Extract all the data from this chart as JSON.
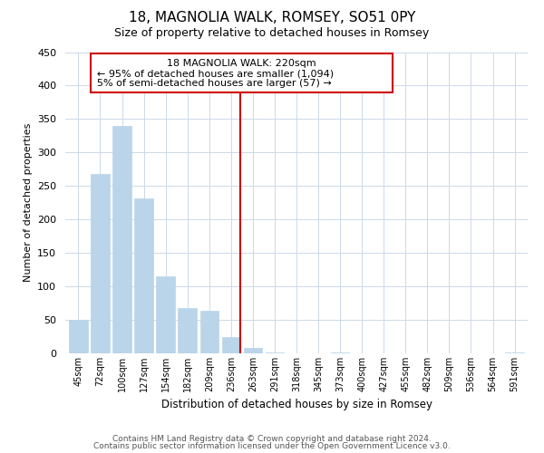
{
  "title": "18, MAGNOLIA WALK, ROMSEY, SO51 0PY",
  "subtitle": "Size of property relative to detached houses in Romsey",
  "xlabel": "Distribution of detached houses by size in Romsey",
  "ylabel": "Number of detached properties",
  "bar_labels": [
    "45sqm",
    "72sqm",
    "100sqm",
    "127sqm",
    "154sqm",
    "182sqm",
    "209sqm",
    "236sqm",
    "263sqm",
    "291sqm",
    "318sqm",
    "345sqm",
    "373sqm",
    "400sqm",
    "427sqm",
    "455sqm",
    "482sqm",
    "509sqm",
    "536sqm",
    "564sqm",
    "591sqm"
  ],
  "bar_values": [
    50,
    268,
    340,
    232,
    115,
    68,
    63,
    25,
    8,
    1,
    0,
    0,
    2,
    0,
    0,
    0,
    0,
    0,
    0,
    0,
    2
  ],
  "bar_color": "#bad4ea",
  "bar_edge_color": "#bad4ea",
  "vline_color": "#cc0000",
  "annotation_line1": "18 MAGNOLIA WALK: 220sqm",
  "annotation_line2": "← 95% of detached houses are smaller (1,094)",
  "annotation_line3": "5% of semi-detached houses are larger (57) →",
  "box_facecolor": "#ffffff",
  "box_edgecolor": "#cc0000",
  "ylim": [
    0,
    450
  ],
  "yticks": [
    0,
    50,
    100,
    150,
    200,
    250,
    300,
    350,
    400,
    450
  ],
  "footer1": "Contains HM Land Registry data © Crown copyright and database right 2024.",
  "footer2": "Contains public sector information licensed under the Open Government Licence v3.0.",
  "background_color": "#ffffff",
  "grid_color": "#ccd9e8"
}
